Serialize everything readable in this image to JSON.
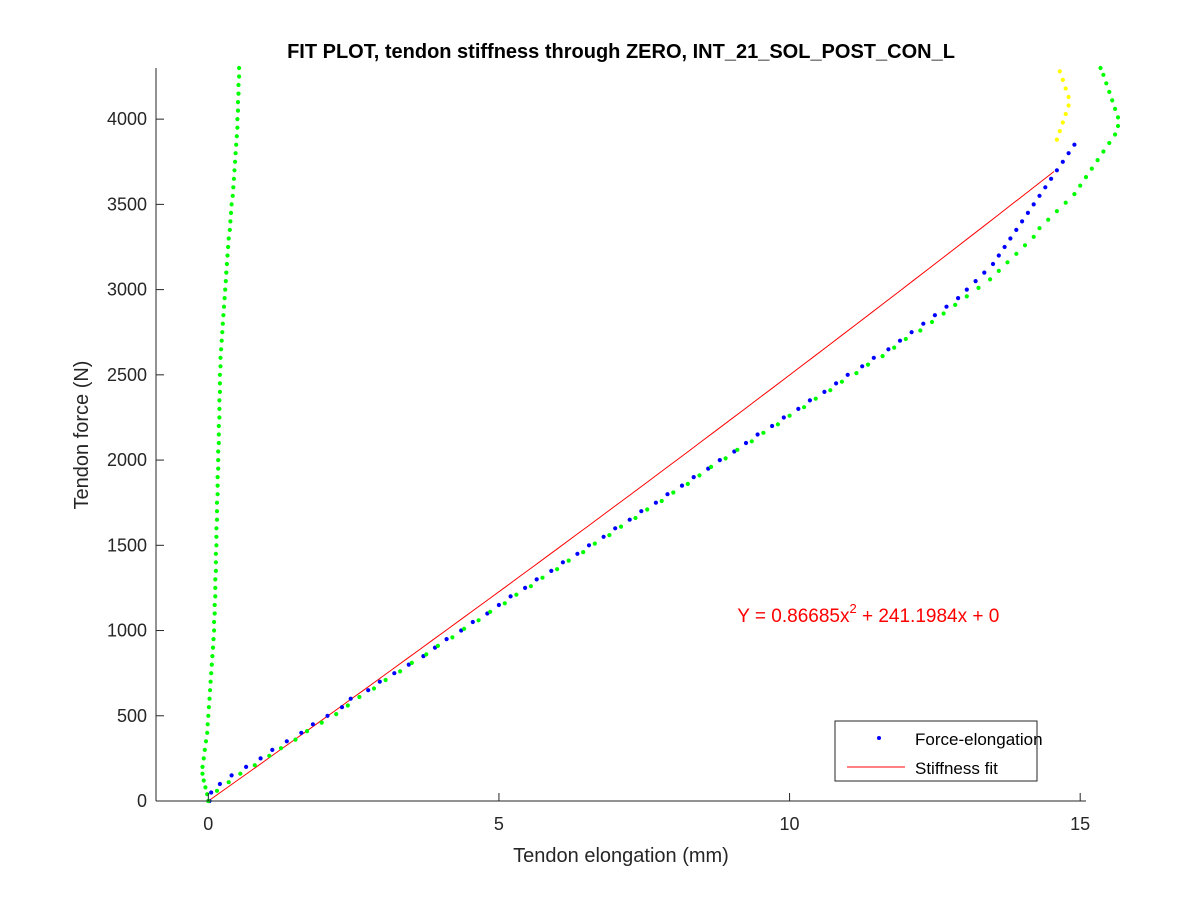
{
  "chart_data": {
    "type": "scatter",
    "title": "FIT PLOT, tendon stiffness through ZERO, INT_21_SOL_POST_CON_L",
    "xlabel": "Tendon elongation (mm)",
    "ylabel": "Tendon force (N)",
    "xlim": [
      -0.9,
      15.1
    ],
    "ylim": [
      0,
      4300
    ],
    "xticks": [
      0,
      5,
      10,
      15
    ],
    "yticks": [
      0,
      500,
      1000,
      1500,
      2000,
      2500,
      3000,
      3500,
      4000
    ],
    "grid": false,
    "box": "left-bottom",
    "legend_position": "bottom-right",
    "legend": [
      "Force-elongation",
      "Stiffness fit"
    ],
    "annotation": {
      "prefix": "Y = 0.86685x",
      "exponent": "2",
      "suffix": " + 241.1984x + 0",
      "x": 9.1,
      "y": 1050
    },
    "colors": {
      "force_elongation": "#0000ff",
      "fit": "#ff0000",
      "green": "#00ff00",
      "yellow": "#ffff00",
      "annotation": "#ff0000"
    },
    "fit": {
      "a": 0.86685,
      "b": 241.1984,
      "c": 0,
      "x_range": [
        0,
        14.55
      ]
    },
    "series": [
      {
        "name": "Force-elongation",
        "color": "#0000ff",
        "points": [
          [
            0.02,
            0
          ],
          [
            0.05,
            50
          ],
          [
            0.2,
            100
          ],
          [
            0.4,
            150
          ],
          [
            0.65,
            200
          ],
          [
            0.9,
            250
          ],
          [
            1.1,
            300
          ],
          [
            1.35,
            350
          ],
          [
            1.6,
            400
          ],
          [
            1.8,
            450
          ],
          [
            2.05,
            500
          ],
          [
            2.3,
            550
          ],
          [
            2.45,
            600
          ],
          [
            2.75,
            650
          ],
          [
            2.95,
            700
          ],
          [
            3.2,
            750
          ],
          [
            3.45,
            800
          ],
          [
            3.7,
            850
          ],
          [
            3.9,
            900
          ],
          [
            4.1,
            950
          ],
          [
            4.35,
            1000
          ],
          [
            4.55,
            1050
          ],
          [
            4.8,
            1100
          ],
          [
            5.0,
            1150
          ],
          [
            5.2,
            1200
          ],
          [
            5.45,
            1250
          ],
          [
            5.65,
            1300
          ],
          [
            5.9,
            1350
          ],
          [
            6.1,
            1400
          ],
          [
            6.35,
            1450
          ],
          [
            6.55,
            1500
          ],
          [
            6.8,
            1550
          ],
          [
            7.0,
            1600
          ],
          [
            7.25,
            1650
          ],
          [
            7.45,
            1700
          ],
          [
            7.7,
            1750
          ],
          [
            7.9,
            1800
          ],
          [
            8.15,
            1850
          ],
          [
            8.35,
            1900
          ],
          [
            8.6,
            1950
          ],
          [
            8.8,
            2000
          ],
          [
            9.05,
            2050
          ],
          [
            9.25,
            2100
          ],
          [
            9.45,
            2150
          ],
          [
            9.7,
            2200
          ],
          [
            9.9,
            2250
          ],
          [
            10.15,
            2300
          ],
          [
            10.35,
            2350
          ],
          [
            10.6,
            2400
          ],
          [
            10.8,
            2450
          ],
          [
            11.0,
            2500
          ],
          [
            11.25,
            2550
          ],
          [
            11.45,
            2600
          ],
          [
            11.7,
            2650
          ],
          [
            11.9,
            2700
          ],
          [
            12.1,
            2750
          ],
          [
            12.3,
            2800
          ],
          [
            12.5,
            2850
          ],
          [
            12.7,
            2900
          ],
          [
            12.9,
            2950
          ],
          [
            13.05,
            3000
          ],
          [
            13.2,
            3050
          ],
          [
            13.35,
            3100
          ],
          [
            13.5,
            3150
          ],
          [
            13.6,
            3200
          ],
          [
            13.7,
            3250
          ],
          [
            13.8,
            3300
          ],
          [
            13.9,
            3350
          ],
          [
            14.0,
            3400
          ],
          [
            14.1,
            3450
          ],
          [
            14.2,
            3500
          ],
          [
            14.3,
            3550
          ],
          [
            14.4,
            3600
          ],
          [
            14.5,
            3650
          ],
          [
            14.6,
            3700
          ],
          [
            14.7,
            3750
          ],
          [
            14.8,
            3800
          ],
          [
            14.9,
            3850
          ]
        ]
      },
      {
        "name": "",
        "color": "#00ff00",
        "points": [
          [
            0.0,
            0
          ],
          [
            0.15,
            60
          ],
          [
            0.35,
            110
          ],
          [
            0.55,
            160
          ],
          [
            0.8,
            210
          ],
          [
            1.05,
            265
          ],
          [
            1.25,
            310
          ],
          [
            1.5,
            360
          ],
          [
            1.7,
            410
          ],
          [
            1.95,
            460
          ],
          [
            2.2,
            510
          ],
          [
            2.4,
            560
          ],
          [
            2.6,
            610
          ],
          [
            2.85,
            660
          ],
          [
            3.05,
            710
          ],
          [
            3.3,
            760
          ],
          [
            3.5,
            810
          ],
          [
            3.75,
            860
          ],
          [
            3.95,
            910
          ],
          [
            4.2,
            960
          ],
          [
            4.4,
            1010
          ],
          [
            4.65,
            1060
          ],
          [
            4.85,
            1110
          ],
          [
            5.1,
            1160
          ],
          [
            5.3,
            1210
          ],
          [
            5.55,
            1260
          ],
          [
            5.75,
            1310
          ],
          [
            6.0,
            1360
          ],
          [
            6.2,
            1410
          ],
          [
            6.45,
            1460
          ],
          [
            6.65,
            1510
          ],
          [
            6.9,
            1560
          ],
          [
            7.1,
            1610
          ],
          [
            7.35,
            1660
          ],
          [
            7.55,
            1710
          ],
          [
            7.8,
            1760
          ],
          [
            8.0,
            1810
          ],
          [
            8.25,
            1860
          ],
          [
            8.45,
            1910
          ],
          [
            8.65,
            1960
          ],
          [
            8.9,
            2010
          ],
          [
            9.1,
            2060
          ],
          [
            9.35,
            2110
          ],
          [
            9.55,
            2160
          ],
          [
            9.8,
            2210
          ],
          [
            10.0,
            2260
          ],
          [
            10.25,
            2310
          ],
          [
            10.45,
            2360
          ],
          [
            10.7,
            2410
          ],
          [
            10.9,
            2460
          ],
          [
            11.15,
            2510
          ],
          [
            11.35,
            2560
          ],
          [
            11.6,
            2610
          ],
          [
            11.8,
            2660
          ],
          [
            12.0,
            2710
          ],
          [
            12.25,
            2760
          ],
          [
            12.45,
            2810
          ],
          [
            12.65,
            2860
          ],
          [
            12.85,
            2910
          ],
          [
            13.05,
            2960
          ],
          [
            13.25,
            3010
          ],
          [
            13.45,
            3060
          ],
          [
            13.6,
            3110
          ],
          [
            13.75,
            3160
          ],
          [
            13.9,
            3210
          ],
          [
            14.05,
            3260
          ],
          [
            14.2,
            3310
          ],
          [
            14.3,
            3360
          ],
          [
            14.45,
            3410
          ],
          [
            14.6,
            3460
          ],
          [
            14.75,
            3510
          ],
          [
            14.9,
            3560
          ],
          [
            15.0,
            3610
          ],
          [
            15.1,
            3660
          ],
          [
            15.2,
            3710
          ],
          [
            15.3,
            3760
          ],
          [
            15.4,
            3810
          ],
          [
            15.5,
            3860
          ],
          [
            15.6,
            3910
          ],
          [
            15.65,
            3960
          ],
          [
            15.65,
            4010
          ],
          [
            15.6,
            4060
          ],
          [
            15.55,
            4110
          ],
          [
            15.5,
            4160
          ],
          [
            15.45,
            4210
          ],
          [
            15.4,
            4260
          ],
          [
            15.35,
            4300
          ]
        ]
      },
      {
        "name": "",
        "color": "#ffff00",
        "points": [
          [
            14.6,
            3880
          ],
          [
            14.65,
            3930
          ],
          [
            14.7,
            3980
          ],
          [
            14.75,
            4030
          ],
          [
            14.8,
            4080
          ],
          [
            14.8,
            4130
          ],
          [
            14.75,
            4180
          ],
          [
            14.7,
            4230
          ],
          [
            14.65,
            4280
          ]
        ]
      },
      {
        "name": "",
        "color": "#00ff00",
        "points": [
          [
            0.0,
            0
          ],
          [
            -0.02,
            40
          ],
          [
            -0.05,
            80
          ],
          [
            -0.08,
            120
          ],
          [
            -0.1,
            160
          ],
          [
            -0.1,
            200
          ],
          [
            -0.08,
            250
          ],
          [
            -0.06,
            300
          ],
          [
            -0.04,
            350
          ],
          [
            -0.02,
            400
          ],
          [
            -0.01,
            450
          ],
          [
            0.0,
            500
          ],
          [
            0.01,
            550
          ],
          [
            0.02,
            600
          ],
          [
            0.03,
            650
          ],
          [
            0.04,
            700
          ],
          [
            0.05,
            750
          ],
          [
            0.06,
            800
          ],
          [
            0.07,
            850
          ],
          [
            0.08,
            900
          ],
          [
            0.09,
            950
          ],
          [
            0.1,
            1000
          ],
          [
            0.1,
            1050
          ],
          [
            0.11,
            1100
          ],
          [
            0.11,
            1150
          ],
          [
            0.12,
            1200
          ],
          [
            0.12,
            1250
          ],
          [
            0.12,
            1300
          ],
          [
            0.13,
            1350
          ],
          [
            0.13,
            1400
          ],
          [
            0.13,
            1450
          ],
          [
            0.14,
            1500
          ],
          [
            0.14,
            1550
          ],
          [
            0.14,
            1600
          ],
          [
            0.15,
            1650
          ],
          [
            0.15,
            1700
          ],
          [
            0.15,
            1750
          ],
          [
            0.16,
            1800
          ],
          [
            0.16,
            1850
          ],
          [
            0.16,
            1900
          ],
          [
            0.17,
            1950
          ],
          [
            0.17,
            2000
          ],
          [
            0.17,
            2050
          ],
          [
            0.18,
            2100
          ],
          [
            0.18,
            2150
          ],
          [
            0.18,
            2200
          ],
          [
            0.19,
            2250
          ],
          [
            0.19,
            2300
          ],
          [
            0.19,
            2350
          ],
          [
            0.2,
            2400
          ],
          [
            0.2,
            2450
          ],
          [
            0.2,
            2500
          ],
          [
            0.21,
            2550
          ],
          [
            0.21,
            2600
          ],
          [
            0.22,
            2650
          ],
          [
            0.23,
            2700
          ],
          [
            0.24,
            2750
          ],
          [
            0.25,
            2800
          ],
          [
            0.26,
            2850
          ],
          [
            0.27,
            2900
          ],
          [
            0.28,
            2950
          ],
          [
            0.29,
            3000
          ],
          [
            0.3,
            3050
          ],
          [
            0.31,
            3100
          ],
          [
            0.32,
            3150
          ],
          [
            0.33,
            3200
          ],
          [
            0.34,
            3250
          ],
          [
            0.35,
            3300
          ],
          [
            0.37,
            3350
          ],
          [
            0.38,
            3400
          ],
          [
            0.39,
            3450
          ],
          [
            0.4,
            3500
          ],
          [
            0.42,
            3550
          ],
          [
            0.43,
            3600
          ],
          [
            0.44,
            3650
          ],
          [
            0.45,
            3700
          ],
          [
            0.46,
            3750
          ],
          [
            0.47,
            3800
          ],
          [
            0.48,
            3850
          ],
          [
            0.49,
            3900
          ],
          [
            0.5,
            3950
          ],
          [
            0.5,
            4000
          ],
          [
            0.51,
            4050
          ],
          [
            0.51,
            4100
          ],
          [
            0.52,
            4150
          ],
          [
            0.52,
            4200
          ],
          [
            0.53,
            4250
          ],
          [
            0.53,
            4300
          ]
        ]
      }
    ]
  }
}
